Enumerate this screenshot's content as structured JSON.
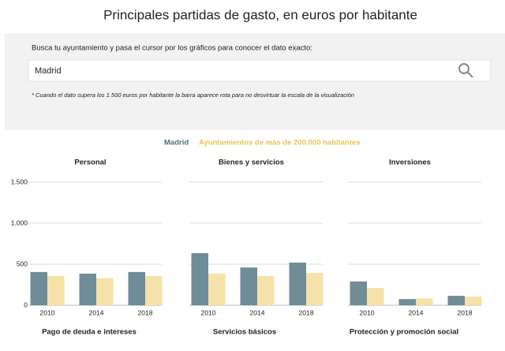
{
  "title": "Principales partidas de gasto, en euros por habitante",
  "search": {
    "instruction": "Busca tu ayuntamiento y pasa el cursor por los gráficos para conocer el dato exacto:",
    "value": "Madrid",
    "note": "* Cuando el dato supera los 1.500 euros por habitante la barra aparece rota para no desvirtuar la escala de la visualización"
  },
  "chart_data": [
    {
      "type": "bar",
      "title": "Personal",
      "categories": [
        "2010",
        "2014",
        "2018"
      ],
      "series": [
        {
          "name": "Madrid",
          "color": "#6f8c97",
          "values": [
            405,
            385,
            405
          ]
        },
        {
          "name": "Ayuntamientos de más de 200.000 habitantes",
          "color": "#f6e1a9",
          "values": [
            355,
            330,
            355
          ]
        }
      ],
      "ylim": [
        0,
        1500
      ],
      "yticks": [
        0,
        500,
        {
          "value": 1000,
          "label": "1.000"
        },
        {
          "value": 1500,
          "label": "1.500"
        }
      ],
      "grid": true
    },
    {
      "type": "bar",
      "title": "Bienes y servicios",
      "categories": [
        "2010",
        "2014",
        "2018"
      ],
      "series": [
        {
          "name": "Madrid",
          "color": "#6f8c97",
          "values": [
            635,
            460,
            520
          ]
        },
        {
          "name": "Ayuntamientos de más de 200.000 habitantes",
          "color": "#f6e1a9",
          "values": [
            385,
            355,
            395
          ]
        }
      ],
      "ylim": [
        0,
        1500
      ],
      "yticks": [
        0,
        500,
        1000,
        1500
      ],
      "grid": true
    },
    {
      "type": "bar",
      "title": "Inversiones",
      "categories": [
        "2010",
        "2014",
        "2018"
      ],
      "series": [
        {
          "name": "Madrid",
          "color": "#6f8c97",
          "values": [
            290,
            75,
            115
          ]
        },
        {
          "name": "Ayuntamientos de más de 200.000 habitantes",
          "color": "#f6e1a9",
          "values": [
            210,
            85,
            105
          ]
        }
      ],
      "ylim": [
        0,
        1500
      ],
      "yticks": [
        0,
        500,
        1000,
        1500
      ],
      "grid": true
    }
  ],
  "more_charts": [
    "Pago de deuda e intereses",
    "Servicios básicos",
    "Protección y promoción social"
  ]
}
